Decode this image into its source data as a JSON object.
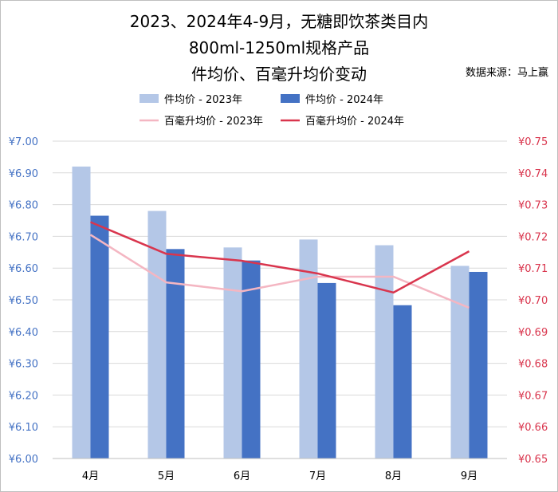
{
  "title": {
    "line1": "2023、2024年4-9月，无糖即饮茶类目内",
    "line2": "800ml-1250ml规格产品",
    "line3": "件均价、百毫升均价变动"
  },
  "source": "数据来源：马上赢",
  "colors": {
    "bar2023": "#b4c7e7",
    "bar2024": "#4472c4",
    "line2023": "#f4b6c2",
    "line2024": "#d9354d",
    "leftAxisText": "#4472c4",
    "rightAxisText": "#d9354d",
    "grid": "#d9d9d9"
  },
  "chart_data": {
    "type": "bar",
    "categories": [
      "4月",
      "5月",
      "6月",
      "7月",
      "8月",
      "9月"
    ],
    "left_axis": {
      "ylim": [
        6.0,
        7.0
      ],
      "ticks": [
        "¥6.00",
        "¥6.10",
        "¥6.20",
        "¥6.30",
        "¥6.40",
        "¥6.50",
        "¥6.60",
        "¥6.70",
        "¥6.80",
        "¥6.90",
        "¥7.00"
      ]
    },
    "right_axis": {
      "ylim": [
        0.65,
        0.75
      ],
      "ticks": [
        "¥0.65",
        "¥0.66",
        "¥0.67",
        "¥0.68",
        "¥0.69",
        "¥0.70",
        "¥0.71",
        "¥0.72",
        "¥0.73",
        "¥0.74",
        "¥0.75"
      ]
    },
    "bar_series": [
      {
        "name": "件均价 - 2023年",
        "values": [
          6.92,
          6.78,
          6.665,
          6.69,
          6.672,
          6.607
        ]
      },
      {
        "name": "件均价 - 2024年",
        "values": [
          6.765,
          6.66,
          6.624,
          6.553,
          6.483,
          6.588
        ]
      }
    ],
    "line_series": [
      {
        "name": "百毫升均价 - 2023年",
        "values": [
          0.7205,
          0.7055,
          0.7027,
          0.7073,
          0.7073,
          0.6975
        ]
      },
      {
        "name": "百毫升均价 - 2024年",
        "values": [
          0.7245,
          0.7145,
          0.7123,
          0.7083,
          0.7023,
          0.7153
        ]
      }
    ],
    "grid": true,
    "legend": "top"
  }
}
